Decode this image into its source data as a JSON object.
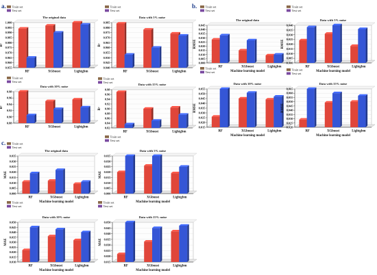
{
  "sections": [
    "a.",
    "b.",
    "c."
  ],
  "colors": {
    "train": "#e0463a",
    "test": "#3556d6",
    "legend_train": "#8a6a4a",
    "legend_test": "#7a4aa0"
  },
  "chart_data": [
    {
      "type": "bar",
      "section": "a.",
      "title": "The original data",
      "xlabel": "",
      "ylabel": "R²",
      "categories": [
        "RF",
        "XGboost",
        "Lightgbm"
      ],
      "series": [
        {
          "name": "Train set",
          "values": [
            0.994,
            0.997,
            1.0
          ]
        },
        {
          "name": "Test set",
          "values": [
            0.965,
            0.99,
            0.998
          ]
        }
      ],
      "ylim": [
        0.955,
        1.0
      ],
      "yticks": [
        "0.955",
        "0.960",
        "0.965",
        "0.970",
        "0.975",
        "0.980",
        "0.985",
        "0.990",
        "0.995",
        "1.000"
      ]
    },
    {
      "type": "bar",
      "section": "a.",
      "title": "Data with 5% noise",
      "xlabel": "",
      "ylabel": "R²",
      "categories": [
        "RF",
        "XGboost",
        "Lightgbm"
      ],
      "series": [
        {
          "name": "Train set",
          "values": [
            0.984,
            0.978,
            0.974
          ]
        },
        {
          "name": "Test set",
          "values": [
            0.953,
            0.96,
            0.972
          ]
        }
      ],
      "ylim": [
        0.94,
        0.985
      ],
      "yticks": [
        "0.940",
        "0.945",
        "0.950",
        "0.955",
        "0.960",
        "0.965",
        "0.970",
        "0.975",
        "0.980",
        "0.985"
      ]
    },
    {
      "type": "bar",
      "section": "a.",
      "title": "Data with 10% noise",
      "xlabel": "",
      "ylabel": "R²",
      "categories": [
        "RF",
        "XGboost",
        "Lightgbm"
      ],
      "series": [
        {
          "name": "Train set",
          "values": [
            0.98,
            0.95,
            0.955
          ]
        },
        {
          "name": "Test set",
          "values": [
            0.905,
            0.925,
            0.93
          ]
        }
      ],
      "ylim": [
        0.88,
        0.98
      ],
      "yticks": [
        "0.88",
        "0.90",
        "0.92",
        "0.94",
        "0.96",
        "0.98"
      ]
    },
    {
      "type": "bar",
      "section": "a.",
      "title": "Data with 15% noise",
      "xlabel": "",
      "ylabel": "R²",
      "categories": [
        "RF",
        "XGboost",
        "Lightgbm"
      ],
      "series": [
        {
          "name": "Train set",
          "values": [
            0.97,
            0.9,
            0.905
          ]
        },
        {
          "name": "Test set",
          "values": [
            0.835,
            0.85,
            0.875
          ]
        }
      ],
      "ylim": [
        0.82,
        0.98
      ],
      "yticks": [
        "0.82",
        "0.84",
        "0.86",
        "0.88",
        "0.90",
        "0.92",
        "0.94",
        "0.96",
        "0.98"
      ]
    },
    {
      "type": "bar",
      "section": "b.",
      "title": "The original data",
      "xlabel": "Machine learning model",
      "ylabel": "RMSE",
      "categories": [
        "RF",
        "XGboost",
        "Lightgbm"
      ],
      "series": [
        {
          "name": "Train set",
          "values": [
            0.028,
            0.015,
            0.009
          ]
        },
        {
          "name": "Test set",
          "values": [
            0.033,
            0.027,
            0.01
          ]
        }
      ],
      "ylim": [
        0.0,
        0.045
      ],
      "yticks": [
        "0.000",
        "0.005",
        "0.010",
        "0.015",
        "0.020",
        "0.025",
        "0.030",
        "0.035",
        "0.040",
        "0.045"
      ]
    },
    {
      "type": "bar",
      "section": "b.",
      "title": "Data with 5% noise",
      "xlabel": "Machine learning model",
      "ylabel": "RMSE",
      "categories": [
        "RF",
        "XGboost",
        "Lightgbm"
      ],
      "series": [
        {
          "name": "Train set",
          "values": [
            0.024,
            0.031,
            0.018
          ]
        },
        {
          "name": "Test set",
          "values": [
            0.038,
            0.04,
            0.036
          ]
        }
      ],
      "ylim": [
        0.0,
        0.04
      ],
      "yticks": [
        "0.000",
        "0.005",
        "0.010",
        "0.015",
        "0.020",
        "0.025",
        "0.030",
        "0.035",
        "0.040"
      ]
    },
    {
      "type": "bar",
      "section": "b.",
      "title": "Data with 10% noise",
      "xlabel": "Machine learning model",
      "ylabel": "RMSE",
      "categories": [
        "RF",
        "XGboost",
        "Lightgbm"
      ],
      "series": [
        {
          "name": "Train set",
          "values": [
            0.026,
            0.045,
            0.044
          ]
        },
        {
          "name": "Test set",
          "values": [
            0.055,
            0.051,
            0.047
          ]
        }
      ],
      "ylim": [
        0.015,
        0.055
      ],
      "yticks": [
        "0.015",
        "0.020",
        "0.025",
        "0.030",
        "0.035",
        "0.040",
        "0.045",
        "0.050",
        "0.055"
      ]
    },
    {
      "type": "bar",
      "section": "b.",
      "title": "Data with 15% noise",
      "xlabel": "Machine learning model",
      "ylabel": "RMSE",
      "categories": [
        "RF",
        "XGboost",
        "Lightgbm"
      ],
      "series": [
        {
          "name": "Train set",
          "values": [
            0.029,
            0.049,
            0.05
          ]
        },
        {
          "name": "Test set",
          "values": [
            0.065,
            0.06,
            0.057
          ]
        }
      ],
      "ylim": [
        0.02,
        0.065
      ],
      "yticks": [
        "0.020",
        "0.025",
        "0.030",
        "0.035",
        "0.040",
        "0.045",
        "0.050",
        "0.055",
        "0.060",
        "0.065"
      ]
    },
    {
      "type": "bar",
      "section": "c.",
      "title": "The original data",
      "xlabel": "Machine learning model",
      "ylabel": "MAE",
      "categories": [
        "RF",
        "XGboost",
        "Lightgbm"
      ],
      "series": [
        {
          "name": "Train set",
          "values": [
            0.011,
            0.012,
            0.009
          ]
        },
        {
          "name": "Test set",
          "values": [
            0.019,
            0.022,
            0.011
          ]
        }
      ],
      "ylim": [
        0.0,
        0.035
      ],
      "yticks": [
        "0.000",
        "0.005",
        "0.010",
        "0.015",
        "0.020",
        "0.025",
        "0.030",
        "0.035"
      ]
    },
    {
      "type": "bar",
      "section": "c.",
      "title": "Data with 5% noise",
      "xlabel": "Machine learning model",
      "ylabel": "MAE",
      "categories": [
        "RF",
        "XGboost",
        "Lightgbm"
      ],
      "series": [
        {
          "name": "Train set",
          "values": [
            0.02,
            0.026,
            0.019
          ]
        },
        {
          "name": "Test set",
          "values": [
            0.035,
            0.035,
            0.025
          ]
        }
      ],
      "ylim": [
        0.0,
        0.035
      ],
      "yticks": [
        "0.000",
        "0.005",
        "0.010",
        "0.015",
        "0.020",
        "0.025",
        "0.030",
        "0.035"
      ]
    },
    {
      "type": "bar",
      "section": "c.",
      "title": "Data with 10% noise",
      "xlabel": "Machine learning model",
      "ylabel": "MAE",
      "categories": [
        "RF",
        "XGboost",
        "Lightgbm"
      ],
      "series": [
        {
          "name": "Train set",
          "values": [
            0.022,
            0.036,
            0.032
          ]
        },
        {
          "name": "Test set",
          "values": [
            0.045,
            0.043,
            0.04
          ]
        }
      ],
      "ylim": [
        0.01,
        0.05
      ],
      "yticks": [
        "0.010",
        "0.015",
        "0.020",
        "0.025",
        "0.030",
        "0.035",
        "0.040",
        "0.045",
        "0.050"
      ]
    },
    {
      "type": "bar",
      "section": "c.",
      "title": "Data with 15% noise",
      "xlabel": "Machine learning model",
      "ylabel": "MAE",
      "categories": [
        "RF",
        "XGboost",
        "Lightgbm"
      ],
      "series": [
        {
          "name": "Train set",
          "values": [
            0.022,
            0.033,
            0.042
          ]
        },
        {
          "name": "Test set",
          "values": [
            0.05,
            0.045,
            0.047
          ]
        }
      ],
      "ylim": [
        0.015,
        0.05
      ],
      "yticks": [
        "0.015",
        "0.020",
        "0.025",
        "0.030",
        "0.035",
        "0.040",
        "0.045",
        "0.050"
      ]
    }
  ]
}
